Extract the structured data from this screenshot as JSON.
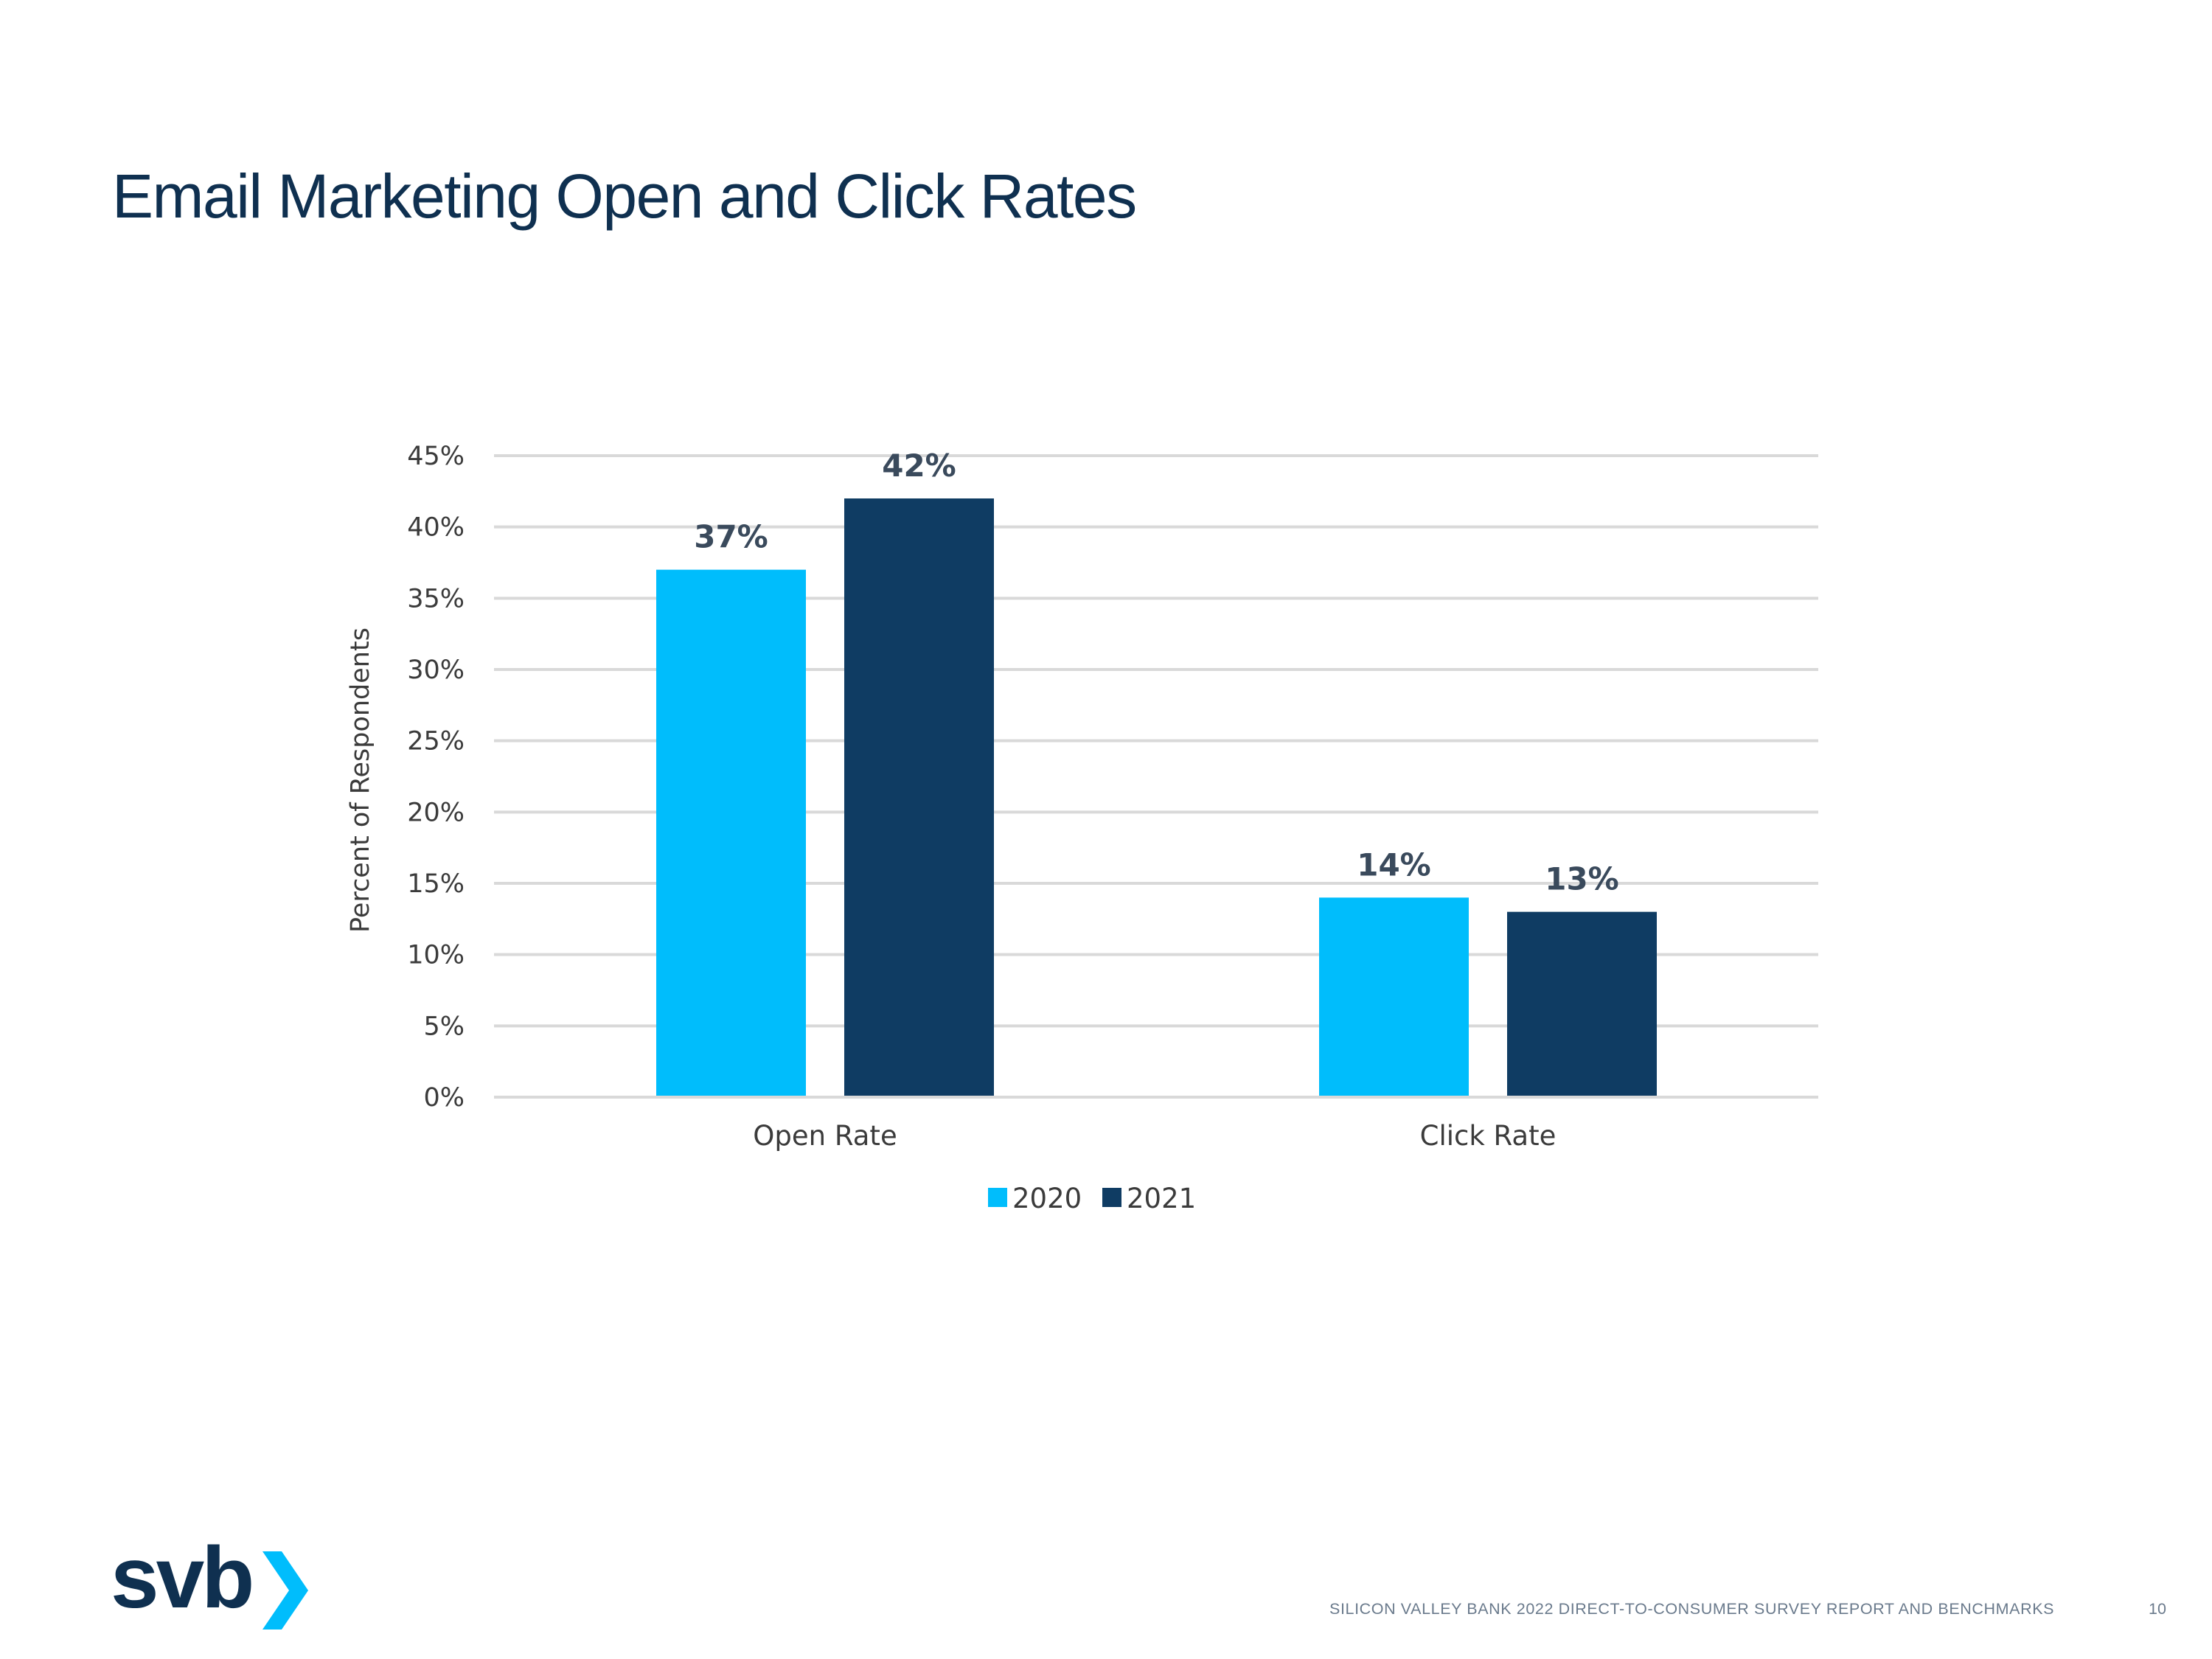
{
  "title": "Email Marketing Open and Click Rates",
  "colors": {
    "series_2020": "#00bdfc",
    "series_2021": "#0f3c63",
    "title": "#0f3050",
    "gridline": "#d9d9d9",
    "logo_chevron": "#00bdfc"
  },
  "chart_data": {
    "type": "bar",
    "categories": [
      "Open Rate",
      "Click Rate"
    ],
    "series": [
      {
        "name": "2020",
        "values": [
          37,
          14
        ],
        "labels": [
          "37%",
          "14%"
        ]
      },
      {
        "name": "2021",
        "values": [
          42,
          13
        ],
        "labels": [
          "42%",
          "13%"
        ]
      }
    ],
    "ylabel": "Percent of Respondents",
    "xlabel": "",
    "ylim": [
      0,
      45
    ],
    "yticks": [
      0,
      5,
      10,
      15,
      20,
      25,
      30,
      35,
      40,
      45
    ],
    "ytick_labels": [
      "0%",
      "5%",
      "10%",
      "15%",
      "20%",
      "25%",
      "30%",
      "35%",
      "40%",
      "45%"
    ],
    "grid": true,
    "legend_position": "bottom-center"
  },
  "logo": {
    "text": "svb",
    "icon": "chevron-right-icon"
  },
  "footer": {
    "report_title": "SILICON VALLEY BANK 2022 DIRECT-TO-CONSUMER SURVEY REPORT AND BENCHMARKS",
    "page_number": "10"
  }
}
